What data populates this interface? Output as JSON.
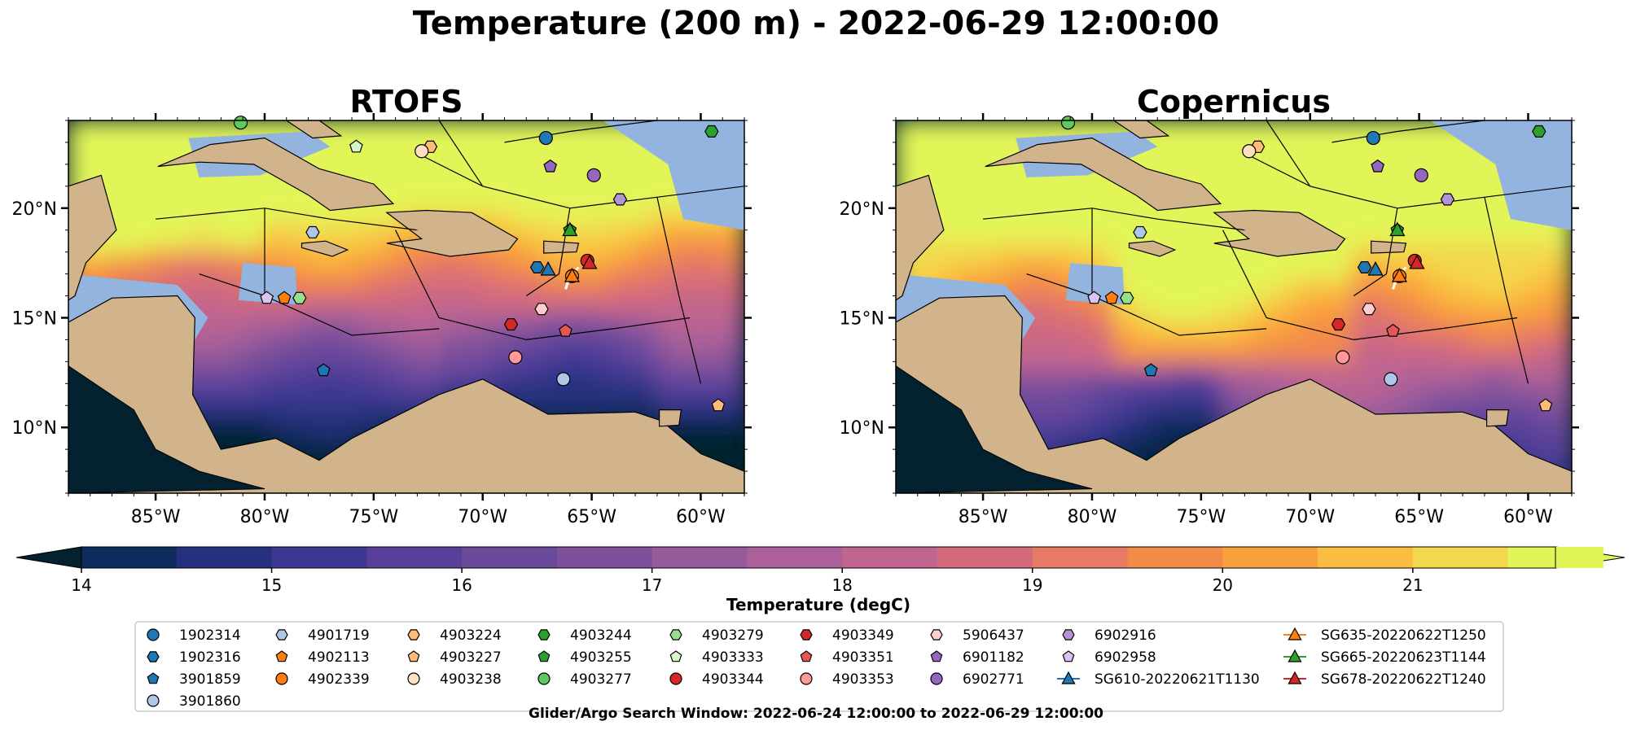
{
  "figure_title": "Temperature (200 m) - 2022-06-29 12:00:00",
  "footer": "Glider/Argo Search Window: 2022-06-24 12:00:00 to 2022-06-29 12:00:00",
  "colors": {
    "land": "#d2b48c",
    "shelf": "#94b4e0",
    "cmap": [
      "#03212f",
      "#0d2b5c",
      "#25307e",
      "#3e3893",
      "#573f9a",
      "#6a4a9b",
      "#7c509b",
      "#945a9a",
      "#ab6099",
      "#c06590",
      "#d36b7d",
      "#e67a64",
      "#f38b48",
      "#f9a23d",
      "#fbbd3f",
      "#f3d84d",
      "#e2f558"
    ]
  },
  "chart_data": [
    {
      "type": "heatmap",
      "title": "RTOFS",
      "variable": "Temperature (200 m)",
      "xlim": [
        -89,
        -58
      ],
      "ylim": [
        7,
        24
      ],
      "xticks": [
        -85,
        -80,
        -75,
        -70,
        -65,
        -60
      ],
      "xtick_labels": [
        "85°W",
        "80°W",
        "75°W",
        "70°W",
        "65°W",
        "60°W"
      ],
      "yticks": [
        10,
        15,
        20
      ],
      "ytick_labels": [
        "10°N",
        "15°N",
        "20°N"
      ],
      "field_summary": "Warm (19-21 degC) north of ~16°N, cool (14-16 degC) in southern Caribbean basin",
      "markers": [
        {
          "id": "1902314",
          "lon": -67.1,
          "lat": 23.2
        },
        {
          "id": "4903277",
          "lon": -81.1,
          "lat": 23.9
        },
        {
          "id": "4903244",
          "lon": -59.5,
          "lat": 23.5
        },
        {
          "id": "4903224",
          "lon": -72.4,
          "lat": 22.8
        },
        {
          "id": "4903238",
          "lon": -72.8,
          "lat": 22.6
        },
        {
          "id": "4903333",
          "lon": -75.8,
          "lat": 22.8
        },
        {
          "id": "6901182",
          "lon": -66.9,
          "lat": 21.9
        },
        {
          "id": "6902771",
          "lon": -64.9,
          "lat": 21.5
        },
        {
          "id": "6902916",
          "lon": -63.7,
          "lat": 20.4
        },
        {
          "id": "4901719",
          "lon": -77.8,
          "lat": 18.9
        },
        {
          "id": "4903255",
          "lon": -66.0,
          "lat": 19.0
        },
        {
          "id": "1902316",
          "lon": -67.5,
          "lat": 17.3
        },
        {
          "id": "4902339",
          "lon": -65.9,
          "lat": 16.9
        },
        {
          "id": "4903344",
          "lon": -65.2,
          "lat": 17.6
        },
        {
          "id": "4903351",
          "lon": -66.2,
          "lat": 14.4
        },
        {
          "id": "4903349",
          "lon": -68.7,
          "lat": 14.7
        },
        {
          "id": "4903353",
          "lon": -68.5,
          "lat": 13.2
        },
        {
          "id": "5906437",
          "lon": -67.3,
          "lat": 15.4
        },
        {
          "id": "3901859",
          "lon": -77.3,
          "lat": 12.6
        },
        {
          "id": "3901860",
          "lon": -66.3,
          "lat": 12.2
        },
        {
          "id": "4903279",
          "lon": -78.4,
          "lat": 15.9
        },
        {
          "id": "4902113",
          "lon": -79.1,
          "lat": 15.9
        },
        {
          "id": "4903227",
          "lon": -59.2,
          "lat": 11.0
        },
        {
          "id": "6902958",
          "lon": -79.9,
          "lat": 15.9
        }
      ]
    },
    {
      "type": "heatmap",
      "title": "Copernicus",
      "variable": "Temperature (200 m)",
      "xlim": [
        -89,
        -58
      ],
      "ylim": [
        7,
        24
      ],
      "xticks": [
        -85,
        -80,
        -75,
        -70,
        -65,
        -60
      ],
      "xtick_labels": [
        "85°W",
        "80°W",
        "75°W",
        "70°W",
        "65°W",
        "60°W"
      ],
      "yticks": [
        10,
        15,
        20
      ],
      "ytick_labels": [
        "10°N",
        "15°N",
        "20°N"
      ],
      "field_summary": "Mostly 19-21+ degC across basin; cooler (14-17 degC) along southern margin near Panama/Colombia",
      "markers": [
        {
          "id": "1902314",
          "lon": -67.1,
          "lat": 23.2
        },
        {
          "id": "4903277",
          "lon": -81.1,
          "lat": 23.9
        },
        {
          "id": "4903244",
          "lon": -59.5,
          "lat": 23.5
        },
        {
          "id": "4903224",
          "lon": -72.4,
          "lat": 22.8
        },
        {
          "id": "4903238",
          "lon": -72.8,
          "lat": 22.6
        },
        {
          "id": "6901182",
          "lon": -66.9,
          "lat": 21.9
        },
        {
          "id": "6902771",
          "lon": -64.9,
          "lat": 21.5
        },
        {
          "id": "6902916",
          "lon": -63.7,
          "lat": 20.4
        },
        {
          "id": "4901719",
          "lon": -77.8,
          "lat": 18.9
        },
        {
          "id": "4903255",
          "lon": -66.0,
          "lat": 19.0
        },
        {
          "id": "1902316",
          "lon": -67.5,
          "lat": 17.3
        },
        {
          "id": "4902339",
          "lon": -65.9,
          "lat": 16.9
        },
        {
          "id": "4903344",
          "lon": -65.2,
          "lat": 17.6
        },
        {
          "id": "4903351",
          "lon": -66.2,
          "lat": 14.4
        },
        {
          "id": "4903349",
          "lon": -68.7,
          "lat": 14.7
        },
        {
          "id": "4903353",
          "lon": -68.5,
          "lat": 13.2
        },
        {
          "id": "5906437",
          "lon": -67.3,
          "lat": 15.4
        },
        {
          "id": "3901859",
          "lon": -77.3,
          "lat": 12.6
        },
        {
          "id": "3901860",
          "lon": -66.3,
          "lat": 12.2
        },
        {
          "id": "4903279",
          "lon": -78.4,
          "lat": 15.9
        },
        {
          "id": "4902113",
          "lon": -79.1,
          "lat": 15.9
        },
        {
          "id": "4903227",
          "lon": -59.2,
          "lat": 11.0
        },
        {
          "id": "6902958",
          "lon": -79.9,
          "lat": 15.9
        }
      ]
    }
  ],
  "colorbar": {
    "label": "Temperature (degC)",
    "vmin": 14,
    "vmax": 21.75,
    "step": 0.5,
    "ticks": [
      14,
      15,
      16,
      17,
      18,
      19,
      20,
      21
    ],
    "extend": "both"
  },
  "legend": {
    "columns": [
      [
        {
          "label": "1902314",
          "marker": "circle",
          "color": "#1f77b4"
        },
        {
          "label": "1902316",
          "marker": "hexagon",
          "color": "#1f77b4"
        },
        {
          "label": "3901859",
          "marker": "pentagon",
          "color": "#1f77b4"
        },
        {
          "label": "3901860",
          "marker": "circle",
          "color": "#aec7e8"
        }
      ],
      [
        {
          "label": "4901719",
          "marker": "hexagon",
          "color": "#aec7e8"
        },
        {
          "label": "4902113",
          "marker": "pentagon",
          "color": "#ff7f0e"
        },
        {
          "label": "4902339",
          "marker": "circle",
          "color": "#ff7f0e"
        }
      ],
      [
        {
          "label": "4903224",
          "marker": "hexagon",
          "color": "#ffbb78"
        },
        {
          "label": "4903227",
          "marker": "pentagon",
          "color": "#ffbb78"
        },
        {
          "label": "4903238",
          "marker": "circle",
          "color": "#ffe0c0"
        }
      ],
      [
        {
          "label": "4903244",
          "marker": "hexagon",
          "color": "#2ca02c"
        },
        {
          "label": "4903255",
          "marker": "pentagon",
          "color": "#2ca02c"
        },
        {
          "label": "4903277",
          "marker": "circle",
          "color": "#5fc85f"
        }
      ],
      [
        {
          "label": "4903279",
          "marker": "hexagon",
          "color": "#98df8a"
        },
        {
          "label": "4903333",
          "marker": "pentagon",
          "color": "#d6f5c8"
        },
        {
          "label": "4903344",
          "marker": "circle",
          "color": "#d62728"
        }
      ],
      [
        {
          "label": "4903349",
          "marker": "hexagon",
          "color": "#d62728"
        },
        {
          "label": "4903351",
          "marker": "pentagon",
          "color": "#e45756"
        },
        {
          "label": "4903353",
          "marker": "circle",
          "color": "#ff9896"
        }
      ],
      [
        {
          "label": "5906437",
          "marker": "hexagon",
          "color": "#ffcfcf"
        },
        {
          "label": "6901182",
          "marker": "pentagon",
          "color": "#9467bd"
        },
        {
          "label": "6902771",
          "marker": "circle",
          "color": "#9467bd"
        }
      ],
      [
        {
          "label": "6902916",
          "marker": "hexagon",
          "color": "#b294d6"
        },
        {
          "label": "6902958",
          "marker": "pentagon",
          "color": "#d8c4ef"
        },
        {
          "label": "SG610-20220621T1130",
          "marker": "triangle-line",
          "color": "#1f77b4"
        }
      ],
      [
        {
          "label": "SG635-20220622T1250",
          "marker": "triangle-line",
          "color": "#ff7f0e"
        },
        {
          "label": "SG665-20220623T1144",
          "marker": "triangle-line",
          "color": "#2ca02c"
        },
        {
          "label": "SG678-20220622T1240",
          "marker": "triangle-line",
          "color": "#d62728"
        }
      ]
    ]
  },
  "gliders": [
    {
      "label": "SG610-20220621T1130",
      "lon": -67.0,
      "lat": 17.2
    },
    {
      "label": "SG635-20220622T1250",
      "lon": -65.9,
      "lat": 16.9
    },
    {
      "label": "SG665-20220623T1144",
      "lon": -66.0,
      "lat": 19.0
    },
    {
      "label": "SG678-20220622T1240",
      "lon": -65.1,
      "lat": 17.5
    }
  ]
}
